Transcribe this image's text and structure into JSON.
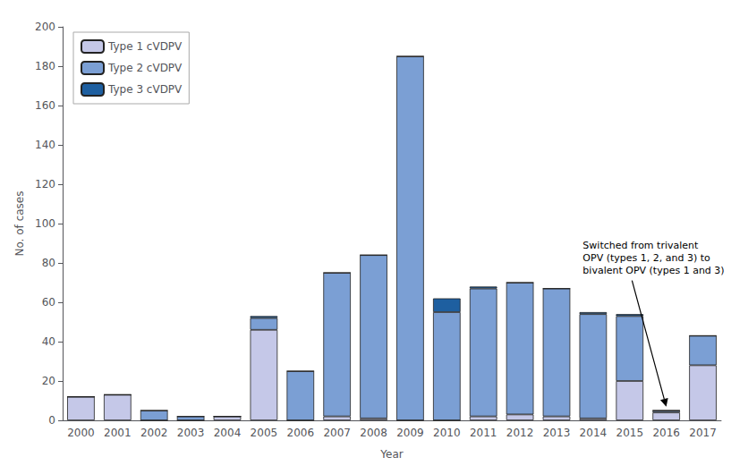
{
  "chart_data": {
    "type": "bar",
    "stacked": true,
    "categories": [
      2000,
      2001,
      2002,
      2003,
      2004,
      2005,
      2006,
      2007,
      2008,
      2009,
      2010,
      2011,
      2012,
      2013,
      2014,
      2015,
      2016,
      2017
    ],
    "series": [
      {
        "name": "Type 1 cVDPV",
        "color": "#c5c8e8",
        "values": [
          12,
          13,
          0,
          0,
          2,
          46,
          0,
          2,
          1,
          0,
          0,
          2,
          3,
          2,
          1,
          20,
          4,
          28
        ]
      },
      {
        "name": "Type 2 cVDPV",
        "color": "#7b9fd4",
        "values": [
          0,
          0,
          5,
          2,
          0,
          6,
          25,
          73,
          83,
          185,
          55,
          65,
          67,
          65,
          53,
          33,
          1,
          15
        ]
      },
      {
        "name": "Type 3 cVDPV",
        "color": "#1e5fa0",
        "values": [
          0,
          0,
          0,
          0,
          0,
          1,
          0,
          0,
          0,
          0,
          7,
          1,
          0,
          0,
          1,
          1,
          0,
          0
        ]
      }
    ],
    "xlabel": "Year",
    "ylabel": "No. of cases",
    "ylim": [
      0,
      200
    ],
    "yticks": [
      0,
      20,
      40,
      60,
      80,
      100,
      120,
      140,
      160,
      180,
      200
    ],
    "grid": false,
    "legend": "upper left",
    "annotations": [
      {
        "text": "Switched from trivalent\nOPV (types 1, 2, and 3) to\nbivalent OPV (types 1 and 3)",
        "x": 2016,
        "y": 6
      }
    ]
  }
}
